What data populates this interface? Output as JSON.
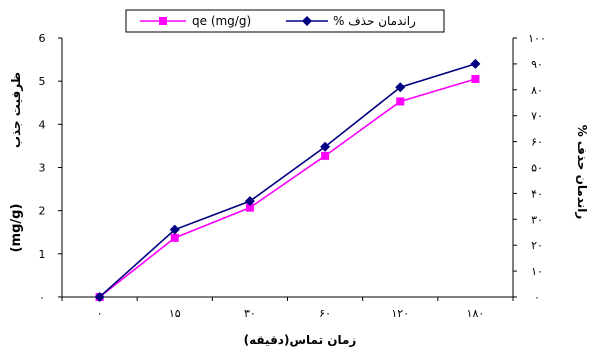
{
  "chart_data": {
    "type": "line",
    "categories": [
      "۰",
      "۱۵",
      "۳۰",
      "۶۰",
      "۱۲۰",
      "۱۸۰"
    ],
    "xlabel": "زمان تماس(دقیقه)",
    "y_left": {
      "label_text": "ظرفیت جذب",
      "label_unit": "(mg/g)",
      "range": [
        0,
        6
      ],
      "ticks": [
        "۰",
        "1",
        "2",
        "3",
        "4",
        "5",
        "6"
      ]
    },
    "y_right": {
      "label": "راندمان حذف %",
      "range": [
        0,
        100
      ],
      "ticks": [
        "۰",
        "۱۰",
        "۲۰",
        "۳۰",
        "۴۰",
        "۵۰",
        "۶۰",
        "۷۰",
        "۸۰",
        "۹۰",
        "۱۰۰"
      ]
    },
    "series": [
      {
        "name": "qe (mg/g)",
        "axis": "left",
        "color": "#ff00ff",
        "marker": "square",
        "values": [
          0,
          1.37,
          2.07,
          3.27,
          4.53,
          5.05
        ]
      },
      {
        "name": "راندمان حذف %",
        "axis": "right",
        "color": "#000080",
        "marker": "diamond",
        "values": [
          0,
          26,
          37,
          58,
          81,
          90
        ]
      }
    ],
    "legend_position": "top-center",
    "grid": false
  }
}
